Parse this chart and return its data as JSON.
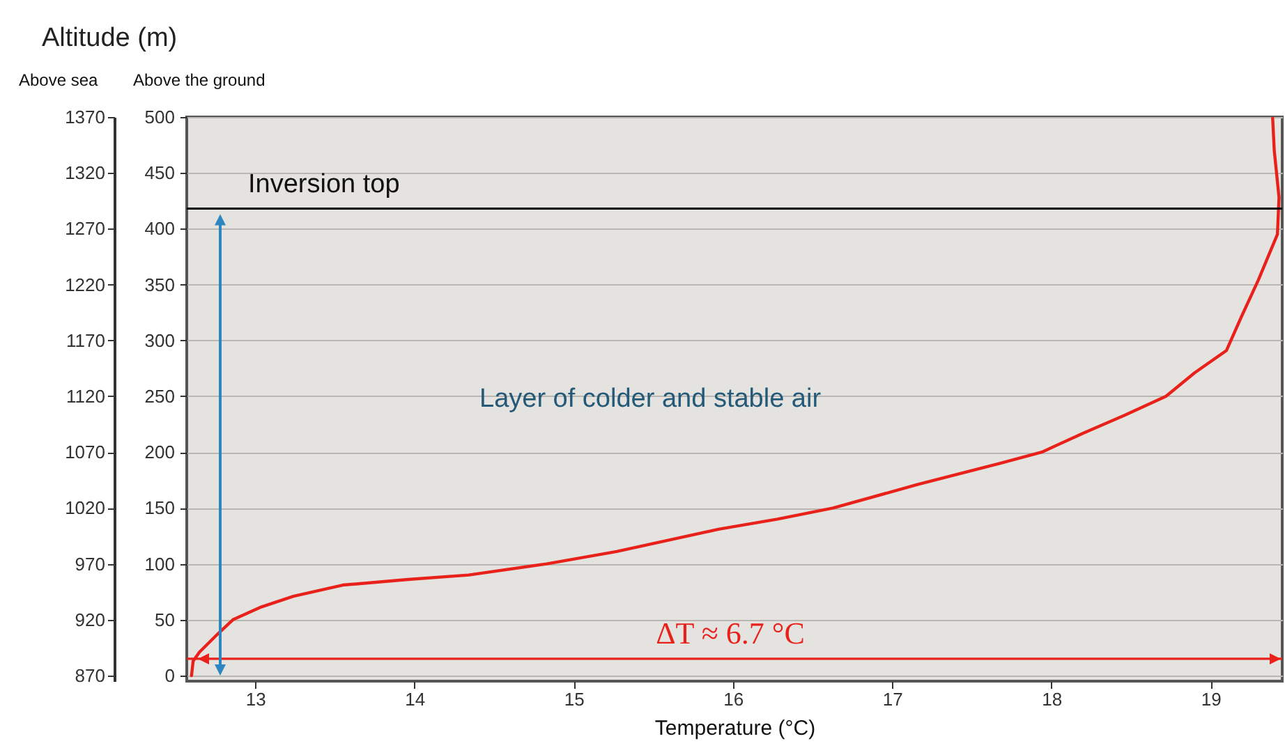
{
  "chart_data": {
    "type": "line",
    "title": "Altitude (m)",
    "xlabel": "Temperature (°C)",
    "ylabel": "Above the ground",
    "y2label": "Above sea",
    "series": [
      {
        "color": "#e8221b",
        "x": [
          12.6,
          12.61,
          12.65,
          12.77,
          12.86,
          13.03,
          13.24,
          13.55,
          13.96,
          14.34,
          14.83,
          15.27,
          15.59,
          15.91,
          16.28,
          16.63,
          17.16,
          17.68,
          17.94,
          18.2,
          18.46,
          18.72,
          18.9,
          19.1,
          19.19,
          19.3,
          19.42,
          19.43,
          19.4,
          19.39
        ],
        "values": [
          0,
          13,
          21,
          38,
          50,
          61,
          71,
          81,
          86,
          90,
          100,
          111,
          121,
          131,
          140,
          150,
          171,
          190,
          200,
          217,
          233,
          250,
          271,
          291,
          320,
          354,
          395,
          428,
          470,
          499
        ]
      }
    ],
    "xlim": [
      12.57,
      19.45
    ],
    "xticks": [
      13,
      14,
      15,
      16,
      17,
      18,
      19
    ],
    "ylim": [
      -5,
      500
    ],
    "yticks": [
      0,
      50,
      100,
      150,
      200,
      250,
      300,
      350,
      400,
      450,
      500
    ],
    "y2lim": [
      865,
      1370
    ],
    "y2ticks": [
      870,
      920,
      970,
      1020,
      1070,
      1120,
      1170,
      1220,
      1270,
      1320,
      1370
    ],
    "grid": "y",
    "legend": false,
    "ref_lines": [
      {
        "axis": "y",
        "value": 418,
        "label": "Inversion top",
        "color": "#000000"
      },
      {
        "axis": "y",
        "value": 15,
        "label": "ΔT ≈ 6.7 °C",
        "color": "#e8221b"
      }
    ],
    "annotations": [
      "Layer of colder and stable air"
    ]
  }
}
